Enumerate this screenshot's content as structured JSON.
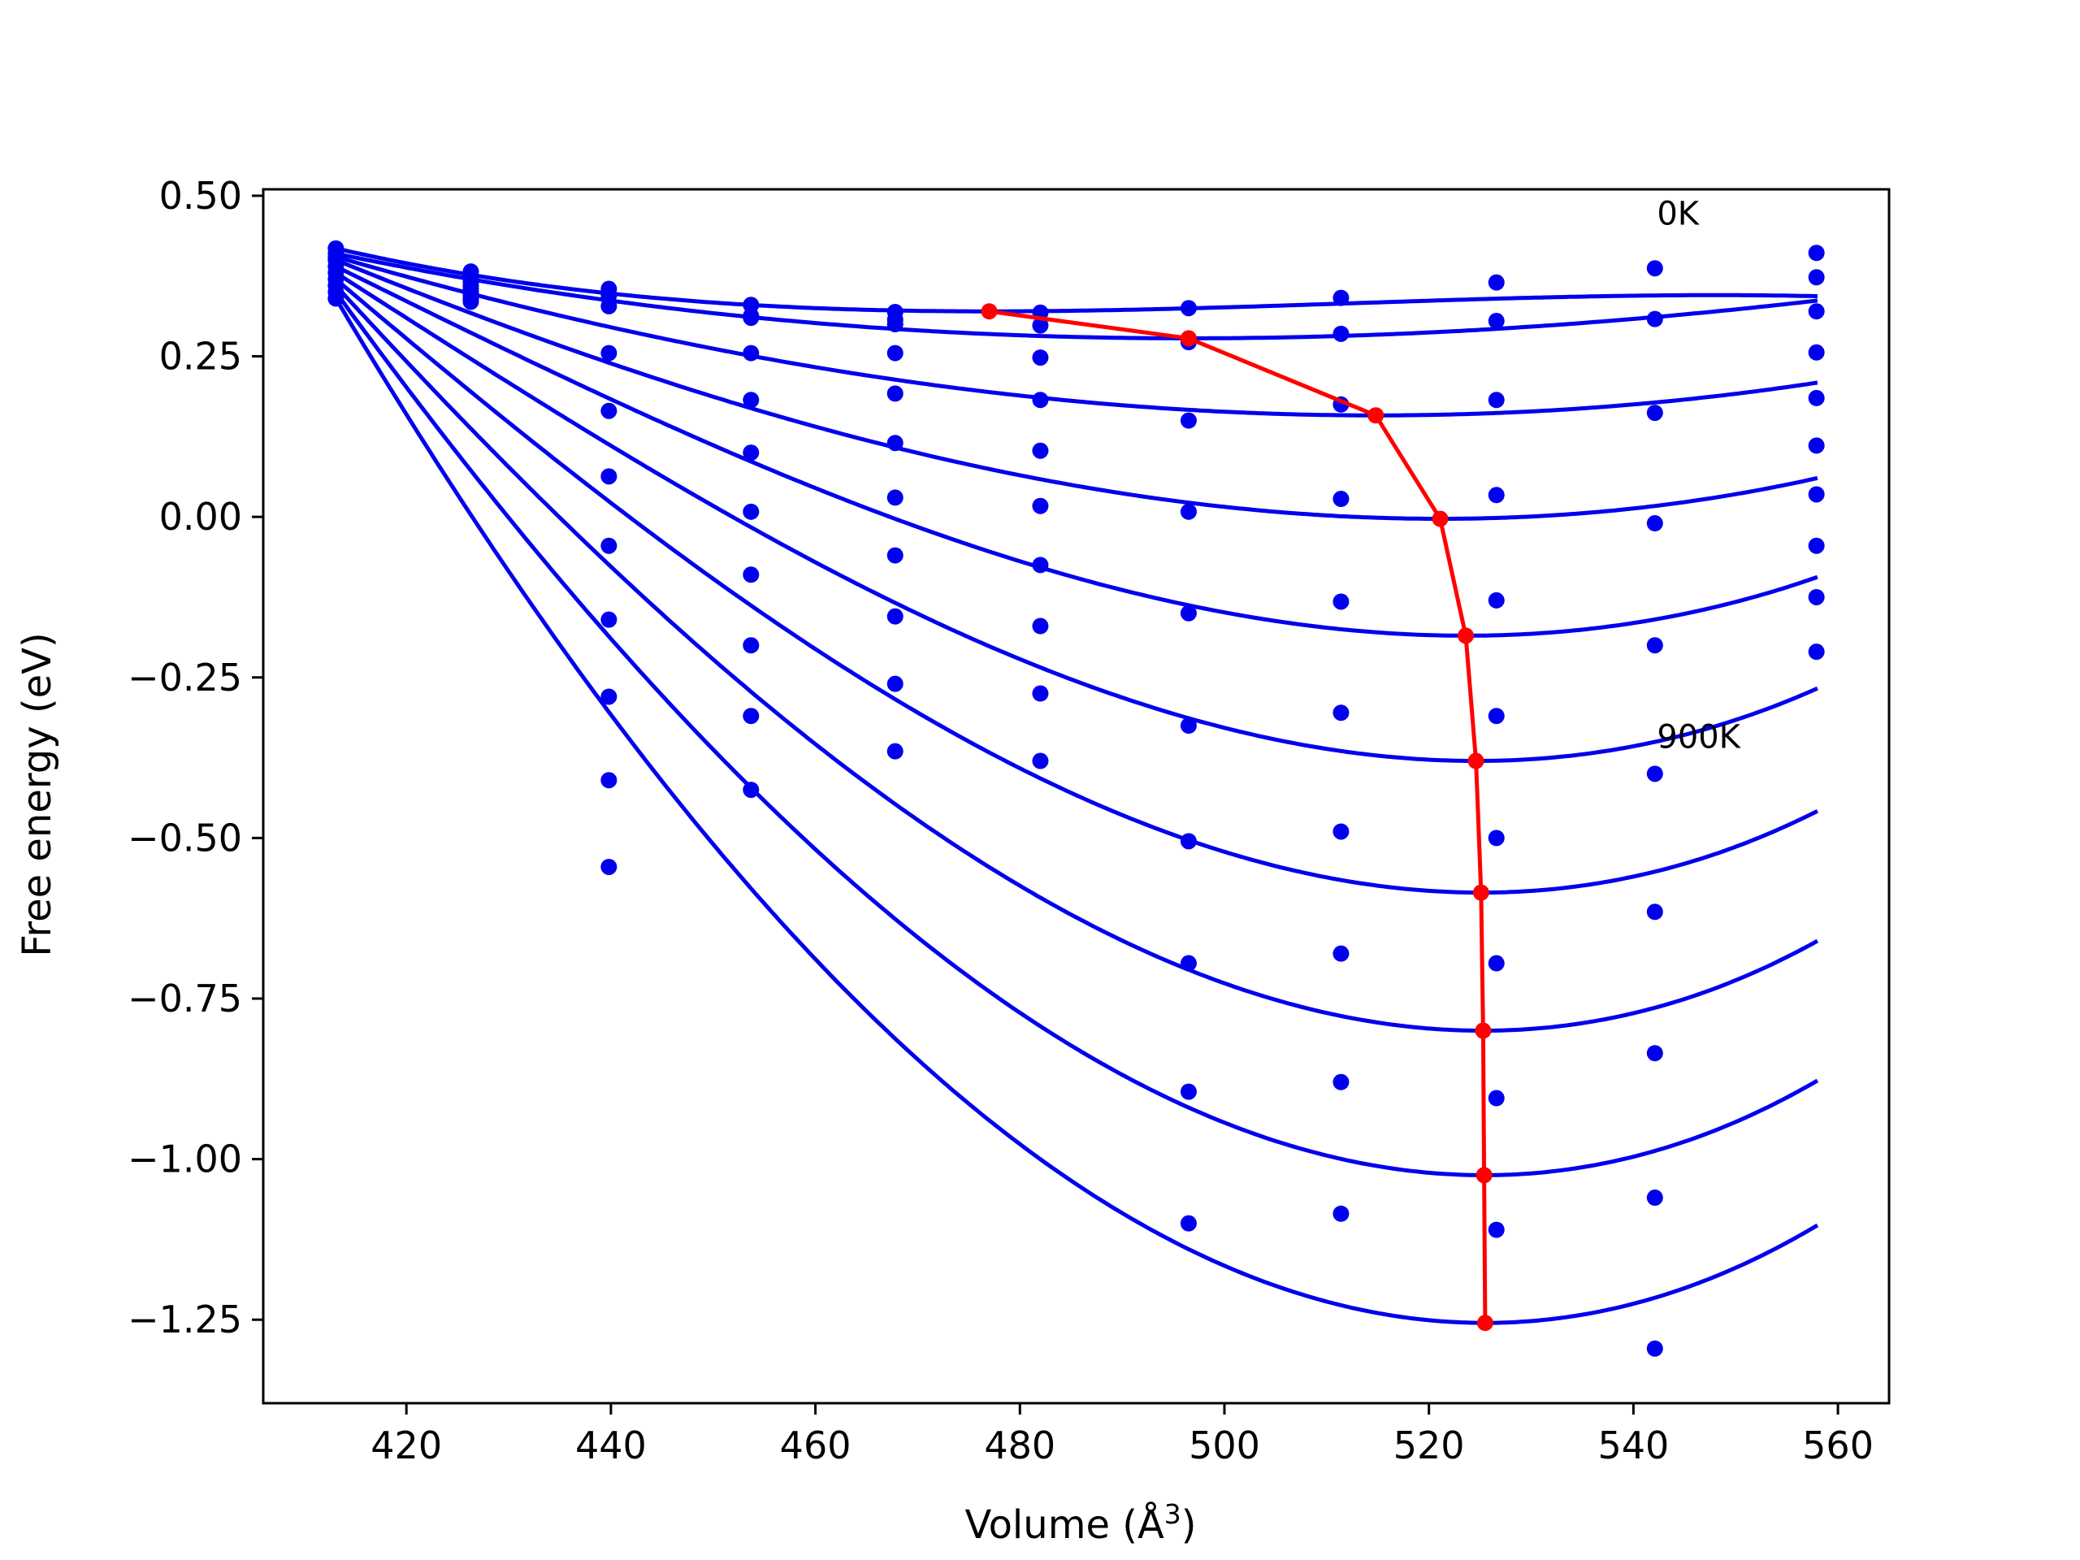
{
  "chart_data": {
    "type": "line",
    "title": "",
    "xlabel": "Volume (Å",
    "xlabel_exponent": "3",
    "xlabel_suffix": ")",
    "ylabel": "Free energy (eV)",
    "xlim": [
      406,
      565
    ],
    "ylim": [
      -1.38,
      0.51
    ],
    "xticks": [
      420,
      440,
      460,
      480,
      500,
      520,
      540,
      560
    ],
    "xtick_labels": [
      "420",
      "440",
      "460",
      "480",
      "500",
      "520",
      "540",
      "560"
    ],
    "yticks": [
      0.5,
      0.25,
      0.0,
      -0.25,
      -0.5,
      -0.75,
      -1.0,
      -1.25
    ],
    "ytick_labels": [
      "0.50",
      "0.25",
      "0.00",
      "−0.25",
      "−0.50",
      "−0.75",
      "−1.00",
      "−1.25"
    ],
    "grid": false,
    "colors": {
      "fit": "#0000ee",
      "points": "#0000ee",
      "minimum_path": "#ff0000"
    },
    "annotations": [
      {
        "text": "0K",
        "x": 542.3,
        "y": 0.455
      },
      {
        "text": "900K",
        "x": 542.3,
        "y": -0.36
      }
    ],
    "fit_range": [
      413,
      558
    ],
    "x": [
      413.1,
      426.3,
      439.8,
      453.7,
      467.8,
      482.0,
      496.5,
      511.4,
      526.6,
      542.1,
      557.9
    ],
    "series": [
      {
        "minimum": [
          477.0,
          0.32
        ],
        "curvature": 1.5e-05,
        "y": [
          0.418,
          0.382,
          0.355,
          0.33,
          0.319,
          0.318,
          0.325,
          0.341,
          0.365,
          0.387,
          0.411
        ]
      },
      {
        "minimum": [
          496.5,
          0.278
        ],
        "curvature": 1.7e-05,
        "y": [
          0.41,
          0.375,
          0.345,
          0.313,
          0.307,
          0.298,
          0.272,
          0.285,
          0.305,
          0.308,
          0.373
        ]
      },
      {
        "minimum": [
          514.8,
          0.158
        ],
        "curvature": 2.63e-05,
        "y": [
          0.405,
          0.37,
          0.328,
          0.31,
          0.3,
          0.248,
          0.15,
          0.175,
          0.182,
          0.162,
          0.32
        ]
      },
      {
        "minimum": [
          521.1,
          -0.003
        ],
        "curvature": 4.35e-05,
        "y": [
          0.4,
          0.365,
          0.255,
          0.255,
          0.255,
          0.182,
          0.008,
          0.028,
          0.034,
          -0.01,
          0.256
        ]
      },
      {
        "minimum": [
          523.6,
          -0.185
        ],
        "curvature": 7e-05,
        "y": [
          0.39,
          0.36,
          0.165,
          0.182,
          0.192,
          0.103,
          -0.15,
          -0.132,
          -0.13,
          -0.2,
          0.185
        ]
      },
      {
        "minimum": [
          524.6,
          -0.38
        ],
        "curvature": 9.2e-05,
        "y": [
          0.38,
          0.355,
          0.063,
          0.1,
          0.115,
          0.017,
          -0.325,
          -0.305,
          -0.31,
          -0.4,
          0.111
        ]
      },
      {
        "minimum": [
          525.1,
          -0.585
        ],
        "curvature": 0.000108,
        "y": [
          0.37,
          0.35,
          -0.045,
          0.008,
          0.03,
          -0.075,
          -0.505,
          -0.49,
          -0.5,
          -0.615,
          0.035
        ]
      },
      {
        "minimum": [
          525.3,
          -0.8
        ],
        "curvature": 0.000122,
        "y": [
          0.36,
          0.345,
          -0.16,
          -0.09,
          -0.06,
          -0.17,
          -0.695,
          -0.68,
          -0.695,
          -0.835,
          -0.045
        ]
      },
      {
        "minimum": [
          525.4,
          -1.025
        ],
        "curvature": 0.000132,
        "y": [
          0.35,
          0.34,
          -0.28,
          -0.2,
          -0.155,
          -0.275,
          -0.895,
          -0.88,
          -0.905,
          -1.06,
          -0.125
        ]
      },
      {
        "minimum": [
          525.5,
          -1.255
        ],
        "curvature": 0.00014,
        "y": [
          0.34,
          0.335,
          -0.41,
          -0.31,
          -0.26,
          -0.38,
          -1.1,
          -1.085,
          -1.11,
          -1.295,
          -0.21
        ]
      }
    ],
    "extra_points": [
      {
        "x": 439.8,
        "y": -0.545
      },
      {
        "x": 453.7,
        "y": -0.425
      },
      {
        "x": 467.8,
        "y": -0.365
      }
    ],
    "minimum_path": {
      "x": [
        477.0,
        496.5,
        514.8,
        521.1,
        523.6,
        524.6,
        525.1,
        525.3,
        525.4,
        525.5
      ],
      "y": [
        0.32,
        0.278,
        0.158,
        -0.003,
        -0.185,
        -0.38,
        -0.585,
        -0.8,
        -1.025,
        -1.255
      ]
    }
  }
}
